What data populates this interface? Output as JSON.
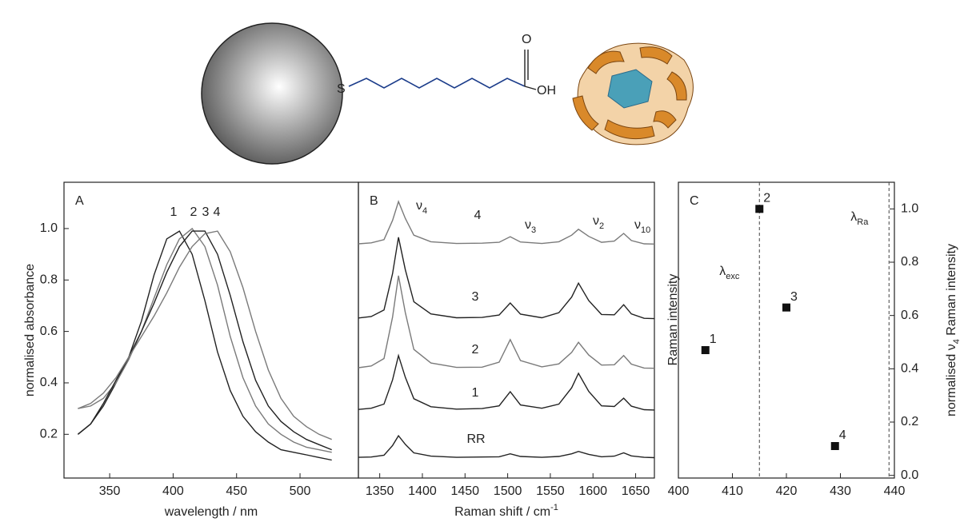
{
  "diagram": {
    "labels": {
      "sulfur": "S",
      "carbonyl_oxygen": "O",
      "hydroxyl": "OH"
    }
  },
  "chart_data": [
    {
      "type": "line",
      "panel_label": "A",
      "xlabel": "wavelength  / nm",
      "ylabel": "normalised absorbance",
      "x": [
        325,
        335,
        345,
        355,
        365,
        375,
        385,
        395,
        405,
        415,
        425,
        435,
        445,
        455,
        465,
        475,
        485,
        495,
        505,
        515,
        525
      ],
      "series": [
        {
          "name": "1",
          "color": "#222222",
          "values": [
            0.2,
            0.24,
            0.31,
            0.4,
            0.5,
            0.64,
            0.82,
            0.96,
            0.99,
            0.9,
            0.72,
            0.52,
            0.37,
            0.27,
            0.21,
            0.17,
            0.14,
            0.13,
            0.12,
            0.11,
            0.1
          ]
        },
        {
          "name": "2",
          "color": "#7a7a7a",
          "values": [
            0.3,
            0.31,
            0.34,
            0.4,
            0.49,
            0.6,
            0.73,
            0.86,
            0.96,
            1.0,
            0.93,
            0.78,
            0.58,
            0.42,
            0.31,
            0.24,
            0.2,
            0.17,
            0.15,
            0.14,
            0.13
          ]
        },
        {
          "name": "3",
          "color": "#222222",
          "values": [
            0.2,
            0.24,
            0.32,
            0.41,
            0.5,
            0.6,
            0.71,
            0.83,
            0.93,
            0.99,
            0.99,
            0.9,
            0.74,
            0.56,
            0.41,
            0.31,
            0.25,
            0.21,
            0.18,
            0.16,
            0.14
          ]
        },
        {
          "name": "4",
          "color": "#7a7a7a",
          "values": [
            0.3,
            0.32,
            0.36,
            0.42,
            0.5,
            0.58,
            0.66,
            0.75,
            0.85,
            0.93,
            0.98,
            0.99,
            0.91,
            0.77,
            0.6,
            0.45,
            0.34,
            0.27,
            0.23,
            0.2,
            0.18
          ]
        }
      ],
      "xlim": [
        314,
        546
      ],
      "ylim": [
        0.03,
        1.18
      ],
      "xticks": [
        350,
        400,
        450,
        500
      ],
      "yticks": [
        0.2,
        0.4,
        0.6,
        0.8,
        {
          "value": 1,
          "label": "1.0"
        }
      ]
    },
    {
      "type": "line",
      "panel_label": "B",
      "xlabel": {
        "text": "Raman shift  / cm",
        "sup": "-1"
      },
      "x": [
        1325,
        1340,
        1355,
        1365,
        1372,
        1380,
        1390,
        1410,
        1440,
        1470,
        1490,
        1503,
        1515,
        1540,
        1560,
        1575,
        1583,
        1595,
        1610,
        1625,
        1636,
        1645,
        1660,
        1672
      ],
      "series": [
        {
          "name": "4",
          "color": "#7a7a7a",
          "values": [
            7.92,
            7.95,
            8.06,
            8.71,
            9.35,
            8.78,
            8.21,
            7.99,
            7.93,
            7.94,
            7.97,
            8.16,
            7.98,
            7.93,
            7.99,
            8.21,
            8.41,
            8.17,
            7.97,
            8.01,
            8.27,
            8.03,
            7.92,
            7.91
          ]
        },
        {
          "name": "3",
          "color": "#222222",
          "values": [
            5.41,
            5.46,
            5.68,
            6.91,
            8.14,
            7.05,
            5.96,
            5.55,
            5.42,
            5.43,
            5.51,
            5.92,
            5.54,
            5.42,
            5.59,
            6.12,
            6.59,
            6.0,
            5.53,
            5.52,
            5.86,
            5.55,
            5.4,
            5.39
          ]
        },
        {
          "name": "2",
          "color": "#7a7a7a",
          "values": [
            3.73,
            3.79,
            4.04,
            5.44,
            6.84,
            5.6,
            4.35,
            3.89,
            3.74,
            3.75,
            3.92,
            4.68,
            3.97,
            3.76,
            3.86,
            4.25,
            4.59,
            4.16,
            3.82,
            3.83,
            4.14,
            3.85,
            3.72,
            3.71
          ]
        },
        {
          "name": "1",
          "color": "#222222",
          "values": [
            2.32,
            2.36,
            2.5,
            3.32,
            4.14,
            3.41,
            2.68,
            2.41,
            2.33,
            2.35,
            2.44,
            2.92,
            2.47,
            2.36,
            2.5,
            3.05,
            3.54,
            2.93,
            2.44,
            2.42,
            2.7,
            2.43,
            2.31,
            2.3
          ]
        },
        {
          "name": "RR",
          "color": "#222222",
          "values": [
            0.7,
            0.71,
            0.77,
            1.1,
            1.43,
            1.14,
            0.85,
            0.74,
            0.7,
            0.71,
            0.72,
            0.82,
            0.73,
            0.7,
            0.73,
            0.82,
            0.9,
            0.8,
            0.72,
            0.74,
            0.85,
            0.75,
            0.7,
            0.69
          ]
        }
      ],
      "annotations": [
        {
          "symbol": "ν",
          "sub": "4"
        },
        {
          "symbol": "ν",
          "sub": "3"
        },
        {
          "symbol": "ν",
          "sub": "2"
        },
        {
          "symbol": "ν",
          "sub": "10"
        }
      ],
      "xlim": [
        1325,
        1672
      ],
      "ylim": [
        0,
        10
      ],
      "xticks": [
        1350,
        1400,
        1450,
        1500,
        1550,
        1600,
        1650
      ]
    },
    {
      "type": "scatter",
      "panel_label": "C",
      "ylabel": "Raman intensity",
      "y2label": {
        "pre": "normalised ν",
        "sub": "4",
        "post": " Raman intensity"
      },
      "x": [
        405,
        415,
        420,
        429
      ],
      "values": [
        0.47,
        1.0,
        0.63,
        0.11
      ],
      "color": "#111111",
      "point_labels": [
        "1",
        "2",
        "3",
        "4"
      ],
      "point_label_colors": [
        "#222222",
        "#7a7a7a",
        "#222222",
        "#7a7a7a"
      ],
      "vlines": [
        {
          "x": 415,
          "symbol": "λ",
          "sub": "exc"
        },
        {
          "x": 439,
          "symbol": "λ",
          "sub": "Ra"
        }
      ],
      "xlim": [
        400,
        440
      ],
      "ylim": [
        -0.01,
        1.1
      ],
      "y_axis_side": "right",
      "xticks": [
        400,
        410,
        420,
        430,
        440
      ],
      "yticks": [
        {
          "value": 0,
          "label": "0.0"
        },
        0.2,
        0.4,
        0.6,
        0.8,
        {
          "value": 1,
          "label": "1.0"
        }
      ]
    }
  ]
}
